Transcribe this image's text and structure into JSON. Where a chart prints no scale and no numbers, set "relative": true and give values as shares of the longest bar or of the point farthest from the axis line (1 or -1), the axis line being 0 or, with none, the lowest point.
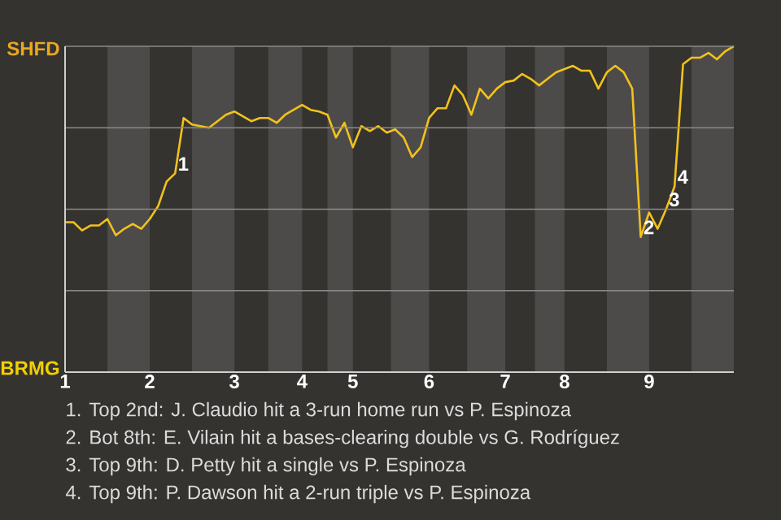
{
  "chart_data": {
    "type": "line",
    "relative": true,
    "categories": [
      "1",
      null,
      null,
      null,
      null,
      null,
      null,
      null,
      null,
      null,
      "2",
      null,
      null,
      null,
      null,
      null,
      null,
      null,
      null,
      null,
      "3",
      null,
      null,
      null,
      null,
      null,
      null,
      null,
      "4",
      null,
      null,
      null,
      null,
      null,
      "5",
      null,
      null,
      null,
      null,
      null,
      null,
      null,
      null,
      "6",
      null,
      null,
      null,
      null,
      null,
      null,
      null,
      null,
      "7",
      null,
      null,
      null,
      null,
      null,
      null,
      "8",
      null,
      null,
      null,
      null,
      null,
      null,
      null,
      null,
      null,
      "9",
      null,
      null,
      null,
      null,
      null,
      null,
      null,
      null,
      null,
      null
    ],
    "series": [
      {
        "color": "#f2c21b",
        "values": [
          0.46,
          0.46,
          0.435,
          0.45,
          0.45,
          0.47,
          0.42,
          0.44,
          0.455,
          0.44,
          0.47,
          0.51,
          0.585,
          0.61,
          0.78,
          0.76,
          0.755,
          0.75,
          0.77,
          0.79,
          0.8,
          0.785,
          0.77,
          0.78,
          0.78,
          0.765,
          0.79,
          0.805,
          0.82,
          0.805,
          0.8,
          0.79,
          0.72,
          0.765,
          0.69,
          0.755,
          0.74,
          0.755,
          0.735,
          0.745,
          0.72,
          0.66,
          0.69,
          0.78,
          0.81,
          0.81,
          0.88,
          0.85,
          0.79,
          0.87,
          0.84,
          0.87,
          0.89,
          0.895,
          0.915,
          0.9,
          0.88,
          0.9,
          0.92,
          0.93,
          0.94,
          0.925,
          0.925,
          0.87,
          0.92,
          0.94,
          0.92,
          0.87,
          0.415,
          0.49,
          0.44,
          0.5,
          0.57,
          0.945,
          0.965,
          0.965,
          0.98,
          0.96,
          0.985,
          1
        ]
      }
    ],
    "grid": "y",
    "annotations": [
      "SHFD",
      "BRMG",
      {
        "text": "1",
        "y": 0.61
      },
      {
        "text": "2",
        "y": 0.415
      },
      {
        "text": "3",
        "y": 0.5
      },
      {
        "text": "4",
        "y": 0.57
      },
      "1. Top 2nd: J. Claudio hit a 3-run home run vs P. Espinoza",
      "2. Bot 8th: E. Vilain hit a bases-clearing double vs G. Rodríguez",
      "3. Top 9th: D. Petty hit a single vs P. Espinoza",
      "4. Top 9th: P. Dawson hit a 2-run triple vs P. Espinoza"
    ]
  }
}
